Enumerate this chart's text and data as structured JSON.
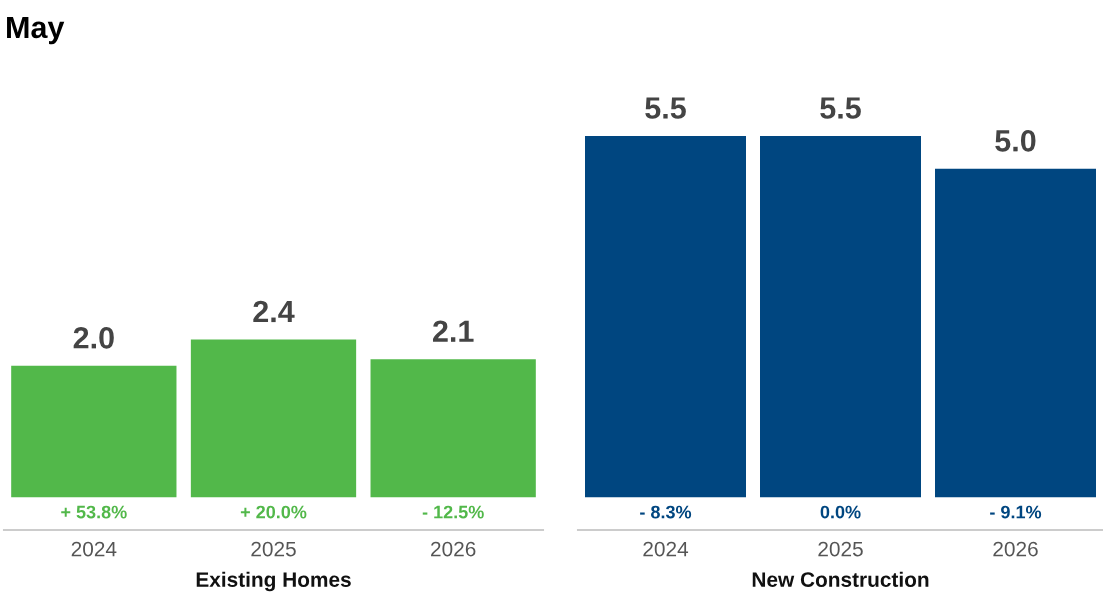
{
  "chart_data": [
    {
      "type": "bar",
      "title": "May",
      "xlabel": "Existing Homes",
      "categories": [
        "2024",
        "2025",
        "2026"
      ],
      "values": [
        2.0,
        2.4,
        2.1
      ],
      "value_labels": [
        "2.0",
        "2.4",
        "2.1"
      ],
      "color": "#52b84a",
      "grid": false,
      "legend": false,
      "tick_labels": "x",
      "annotations": [
        "+ 53.8%",
        "+ 20.0%",
        "- 12.5%"
      ]
    },
    {
      "type": "bar",
      "xlabel": "New Construction",
      "categories": [
        "2024",
        "2025",
        "2026"
      ],
      "values": [
        5.5,
        5.5,
        5.0
      ],
      "value_labels": [
        "5.5",
        "5.5",
        "5.0"
      ],
      "color": "#004680",
      "grid": false,
      "legend": false,
      "tick_labels": "x",
      "annotations": [
        "- 8.3%",
        "0.0%",
        "- 9.1%"
      ]
    }
  ]
}
